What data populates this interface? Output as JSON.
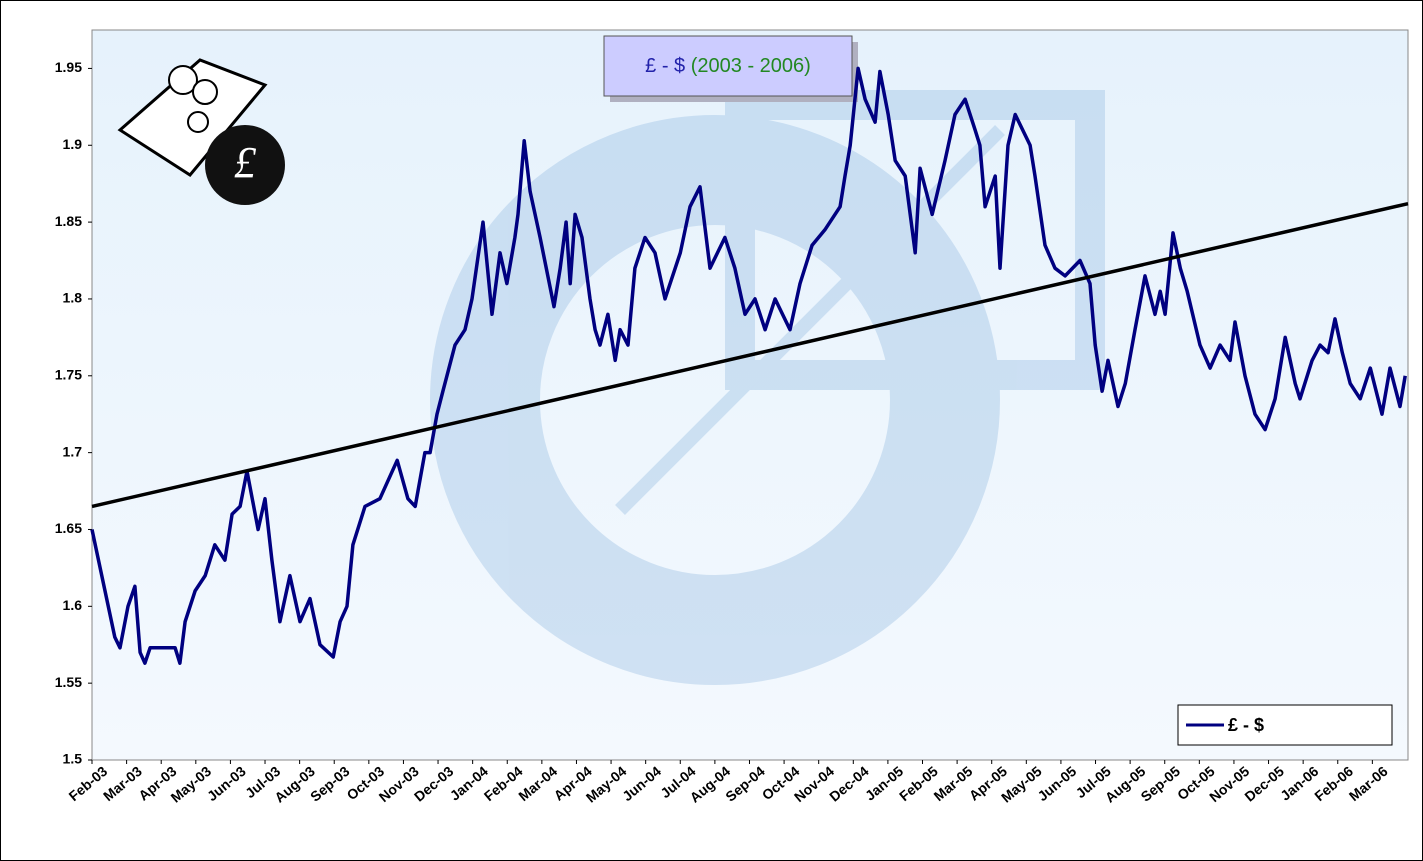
{
  "chart_data": {
    "type": "line",
    "title": "£ - $",
    "title_years": "(2003 - 2006)",
    "x": [
      0,
      0.66,
      0.81,
      1.04,
      1.24,
      1.39,
      1.53,
      1.68,
      2.4,
      2.54,
      2.69,
      2.98,
      3.27,
      3.55,
      3.84,
      4.05,
      4.28,
      4.48,
      4.8,
      5.0,
      5.2,
      5.43,
      5.72,
      6.01,
      6.3,
      6.59,
      6.97,
      7.17,
      7.37,
      7.54,
      7.89,
      8.32,
      8.82,
      9.13,
      9.34,
      9.62,
      9.77,
      9.97,
      10.14,
      10.49,
      10.78,
      10.98,
      11.3,
      11.56,
      11.79,
      11.99,
      12.22,
      12.31,
      12.49,
      12.66,
      12.95,
      13.35,
      13.53,
      13.7,
      13.82,
      13.96,
      14.16,
      14.39,
      14.54,
      14.68,
      14.91,
      15.12,
      15.26,
      15.49,
      15.69,
      15.98,
      16.27,
      16.56,
      17.0,
      17.28,
      17.57,
      17.86,
      18.29,
      18.58,
      18.87,
      19.16,
      19.45,
      19.74,
      20.17,
      20.46,
      20.81,
      21.18,
      21.62,
      21.76,
      21.91,
      22.14,
      22.34,
      22.63,
      22.77,
      23.01,
      23.21,
      23.5,
      23.79,
      23.93,
      24.28,
      24.65,
      24.94,
      25.23,
      25.52,
      25.66,
      25.81,
      26.1,
      26.24,
      26.47,
      26.68,
      27.11,
      27.25,
      27.54,
      27.83,
      28.12,
      28.55,
      28.84,
      28.99,
      29.19,
      29.36,
      29.65,
      29.86,
      30.14,
      30.43,
      30.72,
      30.87,
      31.01,
      31.24,
      31.45,
      31.65,
      32.02,
      32.31,
      32.6,
      32.89,
      33.03,
      33.32,
      33.61,
      33.9,
      34.19,
      34.48,
      34.77,
      34.91,
      35.26,
      35.49,
      35.72,
      35.92,
      36.13,
      36.36,
      36.65,
      36.94,
      37.28,
      37.51,
      37.8,
      37.95
    ],
    "series": [
      {
        "name": "£ - $",
        "color": "#000080",
        "values": [
          1.65,
          1.58,
          1.573,
          1.6,
          1.613,
          1.57,
          1.563,
          1.573,
          1.573,
          1.563,
          1.59,
          1.61,
          1.62,
          1.64,
          1.63,
          1.66,
          1.665,
          1.688,
          1.65,
          1.67,
          1.63,
          1.59,
          1.62,
          1.59,
          1.605,
          1.575,
          1.567,
          1.59,
          1.6,
          1.64,
          1.665,
          1.67,
          1.695,
          1.67,
          1.665,
          1.7,
          1.7,
          1.725,
          1.74,
          1.77,
          1.78,
          1.8,
          1.85,
          1.79,
          1.83,
          1.81,
          1.84,
          1.855,
          1.903,
          1.87,
          1.84,
          1.795,
          1.82,
          1.85,
          1.81,
          1.855,
          1.84,
          1.8,
          1.78,
          1.77,
          1.79,
          1.76,
          1.78,
          1.77,
          1.82,
          1.84,
          1.83,
          1.8,
          1.83,
          1.86,
          1.873,
          1.82,
          1.84,
          1.82,
          1.79,
          1.8,
          1.78,
          1.8,
          1.78,
          1.81,
          1.835,
          1.845,
          1.86,
          1.88,
          1.9,
          1.95,
          1.93,
          1.915,
          1.948,
          1.92,
          1.89,
          1.88,
          1.83,
          1.885,
          1.855,
          1.89,
          1.92,
          1.93,
          1.91,
          1.9,
          1.86,
          1.88,
          1.82,
          1.9,
          1.92,
          1.9,
          1.88,
          1.835,
          1.82,
          1.815,
          1.825,
          1.81,
          1.77,
          1.74,
          1.76,
          1.73,
          1.745,
          1.78,
          1.815,
          1.79,
          1.805,
          1.79,
          1.843,
          1.82,
          1.805,
          1.77,
          1.755,
          1.77,
          1.76,
          1.785,
          1.75,
          1.725,
          1.715,
          1.735,
          1.775,
          1.745,
          1.735,
          1.76,
          1.77,
          1.765,
          1.787,
          1.765,
          1.745,
          1.735,
          1.755,
          1.725,
          1.755,
          1.73,
          1.75
        ]
      }
    ],
    "trendline": {
      "x": [
        0,
        38.03
      ],
      "values": [
        1.665,
        1.862
      ],
      "color": "#000000"
    },
    "xlim": [
      0,
      38.03
    ],
    "xticks": [
      {
        "value": 0,
        "label": "Feb-03"
      },
      {
        "value": 1,
        "label": "Mar-03"
      },
      {
        "value": 2,
        "label": "Apr-03"
      },
      {
        "value": 3,
        "label": "May-03"
      },
      {
        "value": 4,
        "label": "Jun-03"
      },
      {
        "value": 5,
        "label": "Jul-03"
      },
      {
        "value": 6,
        "label": "Aug-03"
      },
      {
        "value": 7,
        "label": "Sep-03"
      },
      {
        "value": 8,
        "label": "Oct-03"
      },
      {
        "value": 9,
        "label": "Nov-03"
      },
      {
        "value": 10,
        "label": "Dec-03"
      },
      {
        "value": 11,
        "label": "Jan-04"
      },
      {
        "value": 12,
        "label": "Feb-04"
      },
      {
        "value": 13,
        "label": "Mar-04"
      },
      {
        "value": 14,
        "label": "Apr-04"
      },
      {
        "value": 15,
        "label": "May-04"
      },
      {
        "value": 16,
        "label": "Jun-04"
      },
      {
        "value": 17,
        "label": "Jul-04"
      },
      {
        "value": 18,
        "label": "Aug-04"
      },
      {
        "value": 19,
        "label": "Sep-04"
      },
      {
        "value": 20,
        "label": "Oct-04"
      },
      {
        "value": 21,
        "label": "Nov-04"
      },
      {
        "value": 22,
        "label": "Dec-04"
      },
      {
        "value": 23,
        "label": "Jan-05"
      },
      {
        "value": 24,
        "label": "Feb-05"
      },
      {
        "value": 25,
        "label": "Mar-05"
      },
      {
        "value": 26,
        "label": "Apr-05"
      },
      {
        "value": 27,
        "label": "May-05"
      },
      {
        "value": 28,
        "label": "Jun-05"
      },
      {
        "value": 29,
        "label": "Jul-05"
      },
      {
        "value": 30,
        "label": "Aug-05"
      },
      {
        "value": 31,
        "label": "Sep-05"
      },
      {
        "value": 32,
        "label": "Oct-05"
      },
      {
        "value": 33,
        "label": "Nov-05"
      },
      {
        "value": 34,
        "label": "Dec-05"
      },
      {
        "value": 35,
        "label": "Jan-06"
      },
      {
        "value": 36,
        "label": "Feb-06"
      },
      {
        "value": 37,
        "label": "Mar-06"
      }
    ],
    "ylim": [
      1.5,
      1.975
    ],
    "yticks": [
      {
        "value": 1.5,
        "label": "1.5"
      },
      1.55,
      {
        "value": 1.6,
        "label": "1.6"
      },
      1.65,
      {
        "value": 1.7,
        "label": "1.7"
      },
      1.75,
      {
        "value": 1.8,
        "label": "1.8"
      },
      1.85,
      {
        "value": 1.9,
        "label": "1.9"
      },
      1.95
    ],
    "legend": "bottom-right"
  }
}
